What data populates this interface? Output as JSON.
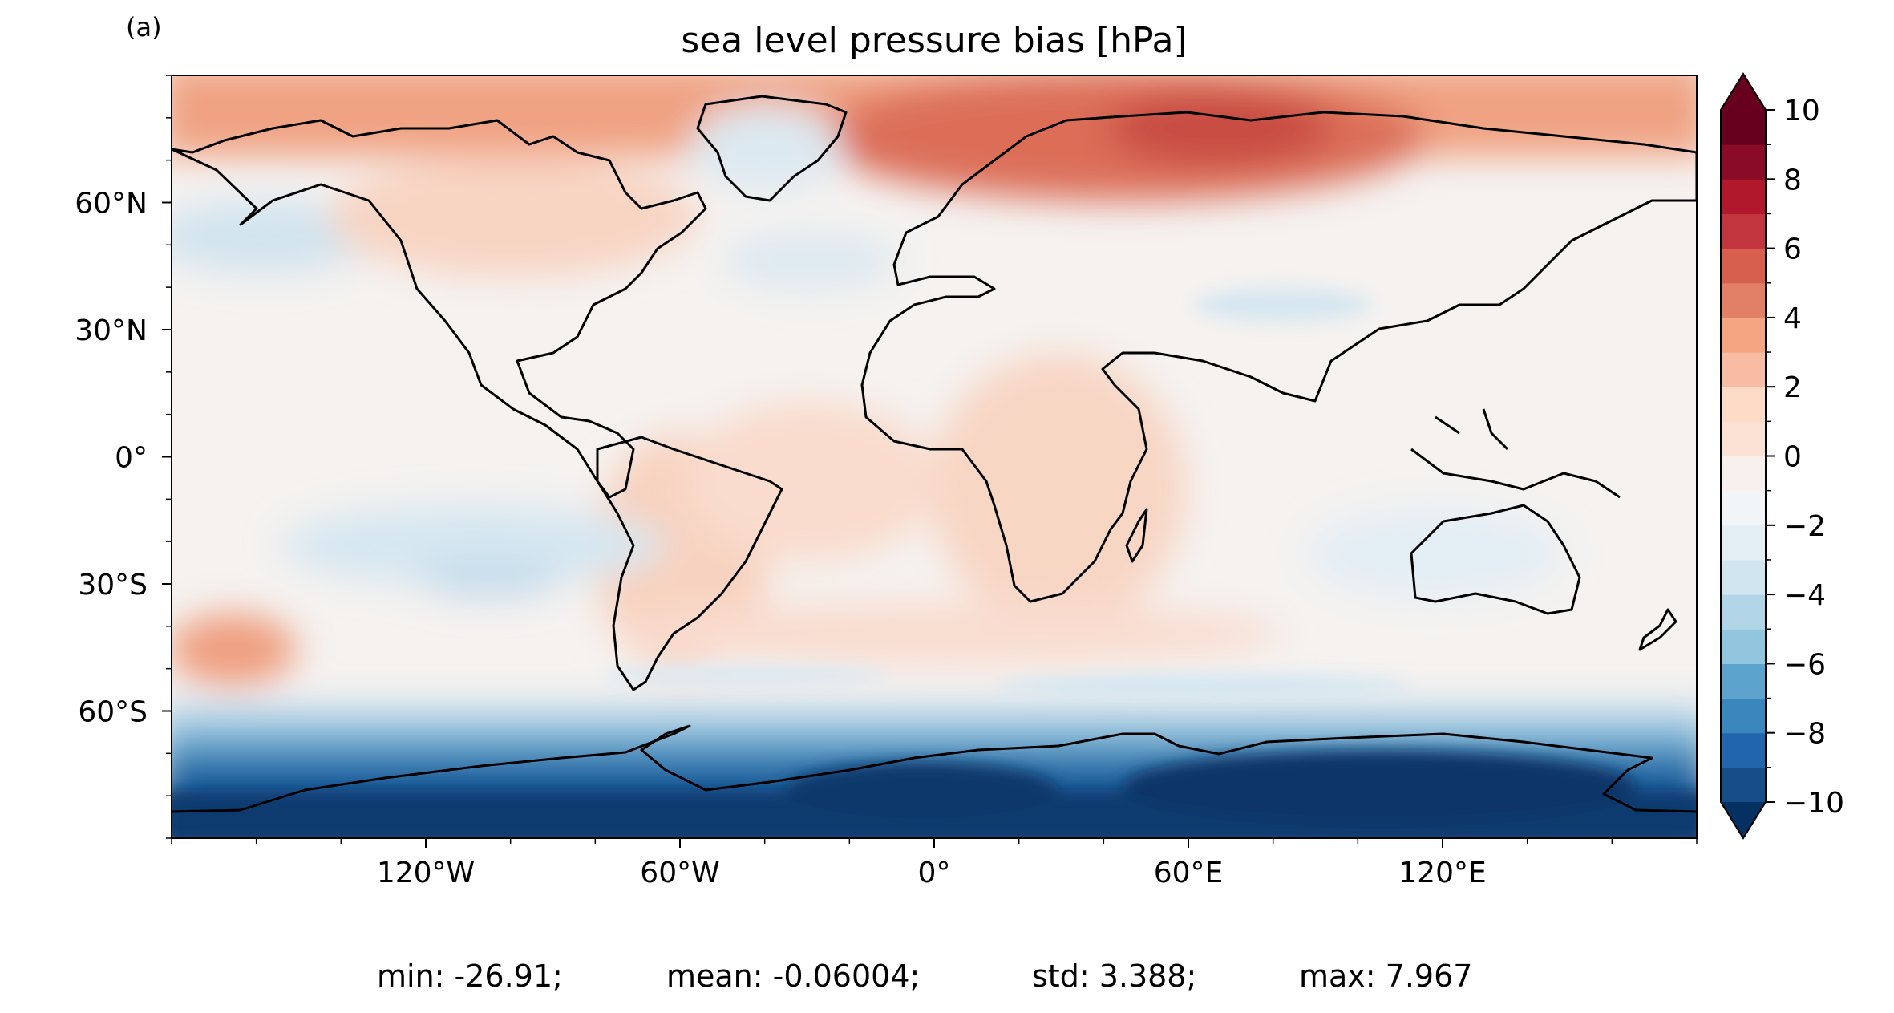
{
  "panel_label": "(a)",
  "title": "sea level pressure bias [hPa]",
  "axes": {
    "x_ticks": [
      {
        "lon": -120,
        "label": "120°W"
      },
      {
        "lon": -60,
        "label": "60°W"
      },
      {
        "lon": 0,
        "label": "0°"
      },
      {
        "lon": 60,
        "label": "60°E"
      },
      {
        "lon": 120,
        "label": "120°E"
      }
    ],
    "y_ticks": [
      {
        "lat": 60,
        "label": "60°N"
      },
      {
        "lat": 30,
        "label": "30°N"
      },
      {
        "lat": 0,
        "label": "0°"
      },
      {
        "lat": -30,
        "label": "30°S"
      },
      {
        "lat": -60,
        "label": "60°S"
      }
    ],
    "lon_range": [
      -180,
      180
    ],
    "lat_range": [
      -90,
      90
    ]
  },
  "colorbar": {
    "min": -10,
    "max": 10,
    "step": 1,
    "extend": "both",
    "tick_labels": [
      {
        "value": 10,
        "label": "10"
      },
      {
        "value": 8,
        "label": "8"
      },
      {
        "value": 6,
        "label": "6"
      },
      {
        "value": 4,
        "label": "4"
      },
      {
        "value": 2,
        "label": "2"
      },
      {
        "value": 0,
        "label": "0"
      },
      {
        "value": -2,
        "label": "−2"
      },
      {
        "value": -4,
        "label": "−4"
      },
      {
        "value": -6,
        "label": "−6"
      },
      {
        "value": -8,
        "label": "−8"
      },
      {
        "value": -10,
        "label": "−10"
      }
    ],
    "colors": [
      "#053061",
      "#154e88",
      "#2166ac",
      "#3a87bd",
      "#5ca4cd",
      "#92c5de",
      "#b1d5e7",
      "#d1e5f0",
      "#e3eef5",
      "#f2f5f7",
      "#f8f0ec",
      "#fbe1d4",
      "#fddbc7",
      "#f7bca3",
      "#f4a582",
      "#e27f67",
      "#d6604d",
      "#c2343e",
      "#b2182b",
      "#8a0b25",
      "#67001f"
    ]
  },
  "stats": {
    "min": "min: -26.91;",
    "mean": "mean: -0.06004;",
    "std": "std: 3.388;",
    "max": "max: 7.967"
  }
}
